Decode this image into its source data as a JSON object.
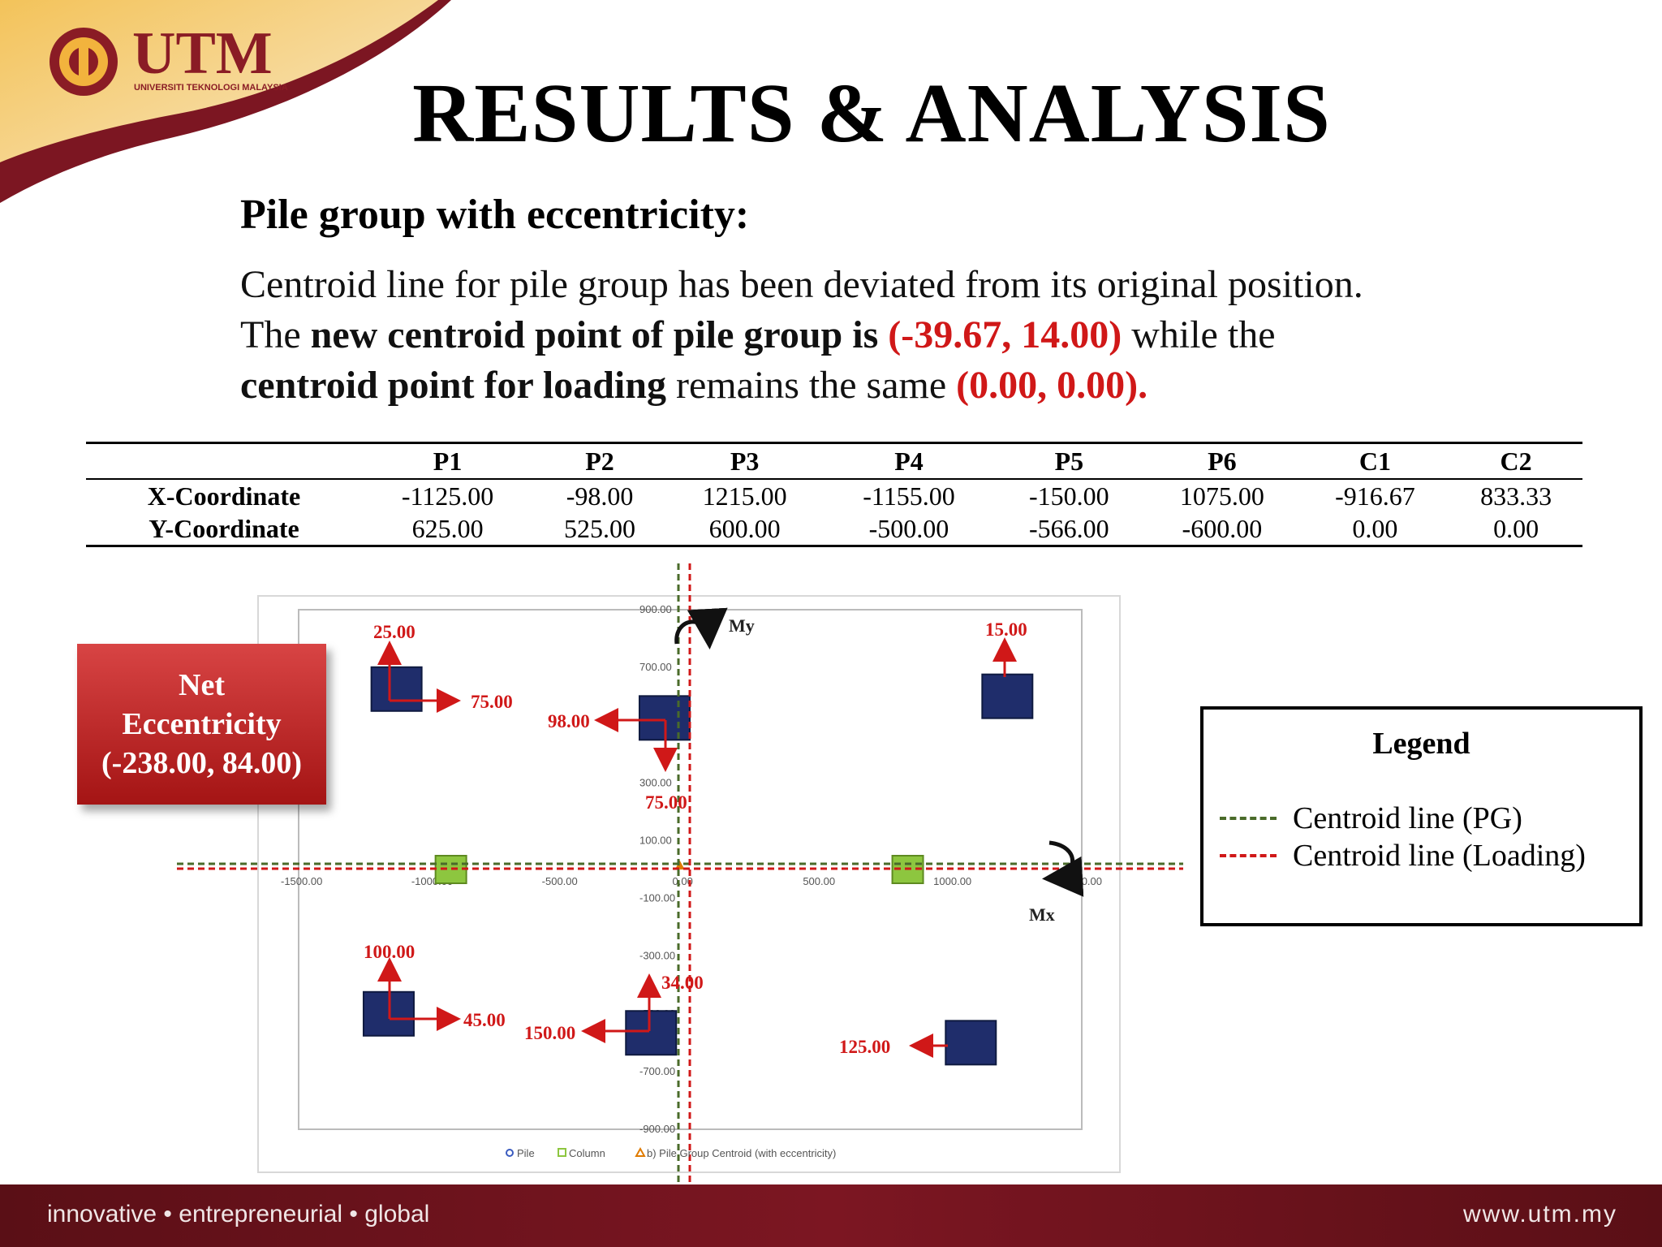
{
  "header": {
    "logo_text": "UTM",
    "logo_subtext": "UNIVERSITI TEKNOLOGI MALAYSIA",
    "title": "RESULTS & ANALYSIS"
  },
  "content": {
    "subtitle": "Pile group with eccentricity:",
    "line1": "Centroid line for pile group has been deviated from its original position.",
    "line2_a": "The ",
    "line2_b": "new centroid point of pile group is",
    "line2_c": " (-39.67, 14.00)",
    "line2_d": " while the",
    "line3_a": "centroid point for loading",
    "line3_b": " remains the same ",
    "line3_c": "(0.00, 0.00)."
  },
  "table": {
    "columns": [
      "",
      "P1",
      "P2",
      "P3",
      "P4",
      "P5",
      "P6",
      "C1",
      "C2"
    ],
    "rows": [
      {
        "label": "X-Coordinate",
        "values": [
          "-1125.00",
          "-98.00",
          "1215.00",
          "-1155.00",
          "-150.00",
          "1075.00",
          "-916.67",
          "833.33"
        ]
      },
      {
        "label": "Y-Coordinate",
        "values": [
          "625.00",
          "525.00",
          "600.00",
          "-500.00",
          "-566.00",
          "-600.00",
          "0.00",
          "0.00"
        ]
      }
    ]
  },
  "net_eccentricity": {
    "line1": "Net",
    "line2": "Eccentricity",
    "line3": "(-238.00, 84.00)"
  },
  "legend": {
    "title": "Legend",
    "items": [
      {
        "label": "Centroid line (PG)",
        "color": "#4a6b2a"
      },
      {
        "label": "Centroid line (Loading)",
        "color": "#d01818"
      }
    ]
  },
  "chart_data": {
    "type": "scatter",
    "xlim": [
      -1500,
      1500
    ],
    "ylim": [
      -900,
      900
    ],
    "x_ticks": [
      "-1500.00",
      "-1000.00",
      "-500.00",
      "0.00",
      "500.00",
      "1000.00",
      "1500.00"
    ],
    "y_ticks": [
      "900.00",
      "700.00",
      "300.00",
      "100.00",
      "-100.00",
      "-300.00",
      "-500.00",
      "-700.00",
      "-900.00"
    ],
    "series": [
      {
        "name": "Pile",
        "color": "#1f2d6b",
        "points": [
          {
            "x": -1125,
            "y": 625
          },
          {
            "x": -98,
            "y": 525
          },
          {
            "x": 1215,
            "y": 600
          },
          {
            "x": -1155,
            "y": -500
          },
          {
            "x": -150,
            "y": -566
          },
          {
            "x": 1075,
            "y": -600
          }
        ]
      },
      {
        "name": "Column",
        "color": "#8dc63f",
        "points": [
          {
            "x": -916.67,
            "y": 0
          },
          {
            "x": 833.33,
            "y": 0
          }
        ]
      },
      {
        "name": "b) Pile Group Centroid (with eccentricity)",
        "color": "#e07b00",
        "points": [
          {
            "x": -39.67,
            "y": 14
          }
        ]
      }
    ],
    "annotations": [
      "25.00",
      "75.00",
      "98.00",
      "75.00",
      "15.00",
      "100.00",
      "45.00",
      "150.00",
      "34.00",
      "125.00"
    ],
    "moment_labels": {
      "my": "My",
      "mx": "Mx"
    }
  },
  "footer": {
    "tagline": "innovative • entrepreneurial • global",
    "url": "www.utm.my"
  }
}
